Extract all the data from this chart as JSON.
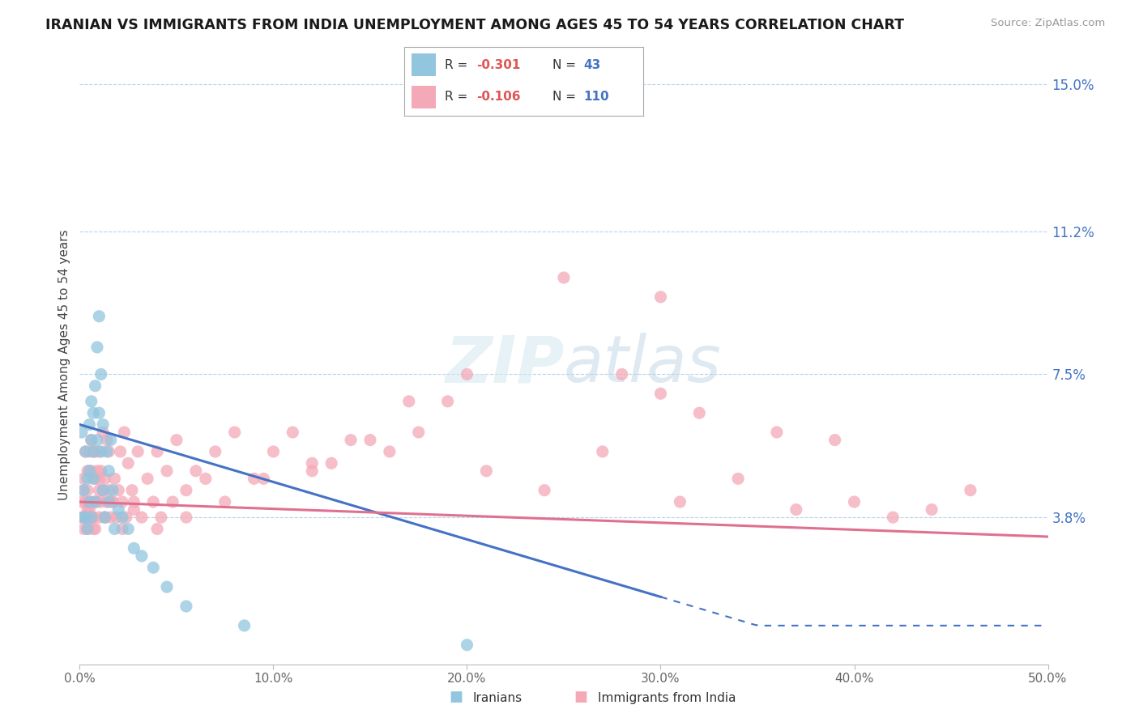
{
  "title": "IRANIAN VS IMMIGRANTS FROM INDIA UNEMPLOYMENT AMONG AGES 45 TO 54 YEARS CORRELATION CHART",
  "source": "Source: ZipAtlas.com",
  "ylabel": "Unemployment Among Ages 45 to 54 years",
  "xlim": [
    0.0,
    0.5
  ],
  "ylim": [
    0.0,
    0.155
  ],
  "yticks": [
    0.0,
    0.038,
    0.075,
    0.112,
    0.15
  ],
  "ytick_labels": [
    "",
    "3.8%",
    "7.5%",
    "11.2%",
    "15.0%"
  ],
  "xticks": [
    0.0,
    0.1,
    0.2,
    0.3,
    0.4,
    0.5
  ],
  "xtick_labels": [
    "0.0%",
    "10.0%",
    "20.0%",
    "30.0%",
    "40.0%",
    "50.0%"
  ],
  "legend_R1": "-0.301",
  "legend_N1": "43",
  "legend_R2": "-0.106",
  "legend_N2": "110",
  "color_iranians": "#92c5de",
  "color_india": "#f4a9b8",
  "color_line_iranians": "#4472c4",
  "color_line_india": "#e07090",
  "iranians_x": [
    0.001,
    0.002,
    0.002,
    0.003,
    0.003,
    0.004,
    0.004,
    0.005,
    0.005,
    0.005,
    0.006,
    0.006,
    0.006,
    0.007,
    0.007,
    0.007,
    0.008,
    0.008,
    0.009,
    0.009,
    0.01,
    0.01,
    0.011,
    0.011,
    0.012,
    0.012,
    0.013,
    0.014,
    0.015,
    0.015,
    0.016,
    0.017,
    0.018,
    0.02,
    0.022,
    0.025,
    0.028,
    0.032,
    0.038,
    0.045,
    0.055,
    0.085,
    0.2
  ],
  "iranians_y": [
    0.06,
    0.045,
    0.038,
    0.055,
    0.038,
    0.048,
    0.035,
    0.042,
    0.05,
    0.062,
    0.058,
    0.068,
    0.038,
    0.048,
    0.055,
    0.065,
    0.042,
    0.072,
    0.058,
    0.082,
    0.065,
    0.09,
    0.055,
    0.075,
    0.062,
    0.045,
    0.038,
    0.055,
    0.05,
    0.042,
    0.058,
    0.045,
    0.035,
    0.04,
    0.038,
    0.035,
    0.03,
    0.028,
    0.025,
    0.02,
    0.015,
    0.01,
    0.005
  ],
  "india_x": [
    0.001,
    0.001,
    0.002,
    0.002,
    0.002,
    0.003,
    0.003,
    0.003,
    0.004,
    0.004,
    0.004,
    0.005,
    0.005,
    0.005,
    0.005,
    0.006,
    0.006,
    0.006,
    0.007,
    0.007,
    0.007,
    0.008,
    0.008,
    0.008,
    0.009,
    0.009,
    0.01,
    0.01,
    0.01,
    0.011,
    0.011,
    0.012,
    0.012,
    0.013,
    0.013,
    0.014,
    0.014,
    0.015,
    0.015,
    0.016,
    0.017,
    0.018,
    0.019,
    0.02,
    0.021,
    0.022,
    0.023,
    0.024,
    0.025,
    0.027,
    0.028,
    0.03,
    0.032,
    0.035,
    0.038,
    0.04,
    0.042,
    0.045,
    0.048,
    0.05,
    0.055,
    0.06,
    0.065,
    0.07,
    0.08,
    0.09,
    0.1,
    0.11,
    0.12,
    0.13,
    0.15,
    0.16,
    0.175,
    0.19,
    0.21,
    0.24,
    0.27,
    0.31,
    0.34,
    0.37,
    0.4,
    0.42,
    0.44,
    0.46,
    0.28,
    0.3,
    0.32,
    0.36,
    0.39,
    0.3,
    0.25,
    0.2,
    0.17,
    0.14,
    0.12,
    0.095,
    0.075,
    0.055,
    0.04,
    0.028,
    0.022,
    0.017,
    0.013,
    0.01,
    0.007,
    0.006,
    0.004,
    0.002,
    0.003,
    0.008
  ],
  "india_y": [
    0.038,
    0.042,
    0.035,
    0.048,
    0.038,
    0.042,
    0.055,
    0.038,
    0.045,
    0.035,
    0.05,
    0.04,
    0.038,
    0.055,
    0.042,
    0.05,
    0.038,
    0.058,
    0.042,
    0.055,
    0.038,
    0.048,
    0.035,
    0.055,
    0.042,
    0.05,
    0.045,
    0.038,
    0.055,
    0.042,
    0.05,
    0.045,
    0.06,
    0.038,
    0.048,
    0.042,
    0.058,
    0.045,
    0.055,
    0.038,
    0.042,
    0.048,
    0.038,
    0.045,
    0.055,
    0.042,
    0.06,
    0.038,
    0.052,
    0.045,
    0.042,
    0.055,
    0.038,
    0.048,
    0.042,
    0.055,
    0.038,
    0.05,
    0.042,
    0.058,
    0.045,
    0.05,
    0.048,
    0.055,
    0.06,
    0.048,
    0.055,
    0.06,
    0.05,
    0.052,
    0.058,
    0.055,
    0.06,
    0.068,
    0.05,
    0.045,
    0.055,
    0.042,
    0.048,
    0.04,
    0.042,
    0.038,
    0.04,
    0.045,
    0.075,
    0.07,
    0.065,
    0.06,
    0.058,
    0.095,
    0.1,
    0.075,
    0.068,
    0.058,
    0.052,
    0.048,
    0.042,
    0.038,
    0.035,
    0.04,
    0.035,
    0.042,
    0.038,
    0.048,
    0.035,
    0.038,
    0.04,
    0.045,
    0.038,
    0.042
  ],
  "trend_iran_x0": 0.0,
  "trend_iran_y0": 0.062,
  "trend_iran_x1": 0.35,
  "trend_iran_y1": 0.01,
  "trend_iran_solid_end": 0.3,
  "trend_india_x0": 0.0,
  "trend_india_y0": 0.042,
  "trend_india_x1": 0.5,
  "trend_india_y1": 0.033
}
